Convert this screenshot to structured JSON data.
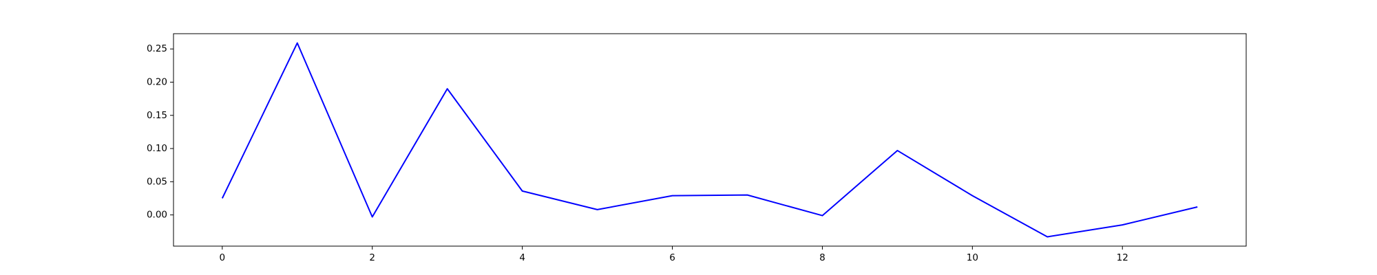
{
  "chart_data": {
    "type": "line",
    "title": "",
    "xlabel": "",
    "ylabel": "",
    "x": [
      0,
      1,
      2,
      3,
      4,
      5,
      6,
      7,
      8,
      9,
      10,
      11,
      12,
      13
    ],
    "series": [
      {
        "values": [
          0.025,
          0.259,
          -0.003,
          0.19,
          0.036,
          0.008,
          0.029,
          0.03,
          -0.001,
          0.097,
          0.029,
          -0.033,
          -0.015,
          0.012
        ]
      }
    ],
    "xlim": [
      -0.65,
      13.65
    ],
    "ylim": [
      -0.047,
      0.273
    ],
    "xticks": [
      "0",
      "2",
      "4",
      "6",
      "8",
      "10",
      "12"
    ],
    "yticks": [
      "0.00",
      "0.05",
      "0.10",
      "0.15",
      "0.20",
      "0.25"
    ],
    "grid": false,
    "colors": {
      "line": "#0000ff",
      "axes": "#000000",
      "background": "#ffffff"
    }
  }
}
